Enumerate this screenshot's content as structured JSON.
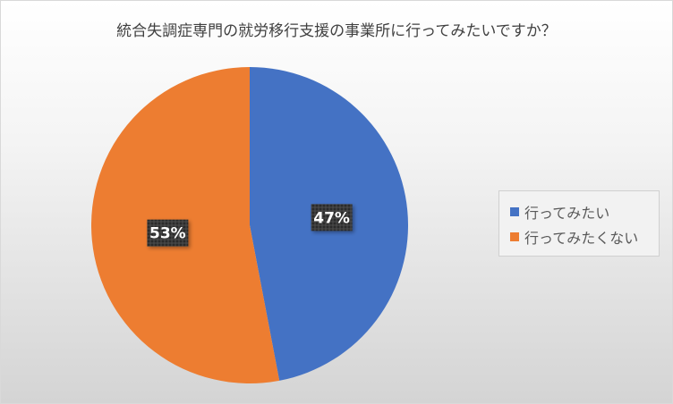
{
  "chart_data": {
    "type": "pie",
    "title": "統合失調症専門の就労移行支援の事業所に行ってみたいですか？",
    "categories": [
      "行ってみたい",
      "行ってみたくない"
    ],
    "values": [
      47,
      53
    ],
    "data_labels": [
      "47%",
      "53%"
    ],
    "colors": [
      "#4472C4",
      "#ED7D31"
    ],
    "legend_position": "right"
  }
}
